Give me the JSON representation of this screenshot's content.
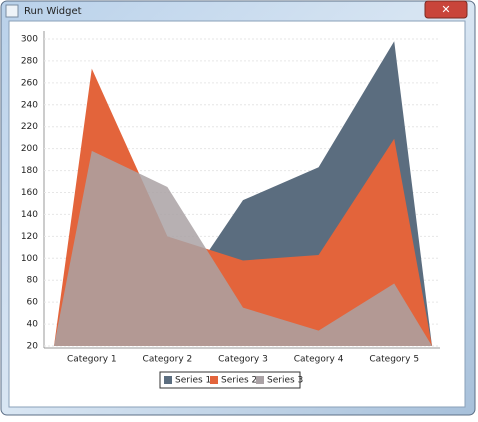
{
  "window": {
    "title": "Run Widget"
  },
  "chart_data": {
    "type": "area",
    "categories": [
      "Category 1",
      "Category 2",
      "Category 3",
      "Category 4",
      "Category 5"
    ],
    "series": [
      {
        "name": "Series 1",
        "color": "#5b6d7f",
        "values": [
          20,
          51,
          153,
          183,
          298
        ]
      },
      {
        "name": "Series 2",
        "color": "#e3643b",
        "values": [
          273,
          120,
          98,
          103,
          209
        ]
      },
      {
        "name": "Series 3",
        "color": "#aaa2a5",
        "values": [
          198,
          165,
          55,
          34,
          77
        ]
      }
    ],
    "ylim": [
      20,
      300
    ],
    "yticks": [
      20,
      40,
      60,
      80,
      100,
      120,
      140,
      160,
      180,
      200,
      220,
      240,
      260,
      280,
      300
    ],
    "grid": true,
    "legend": "bottom"
  }
}
